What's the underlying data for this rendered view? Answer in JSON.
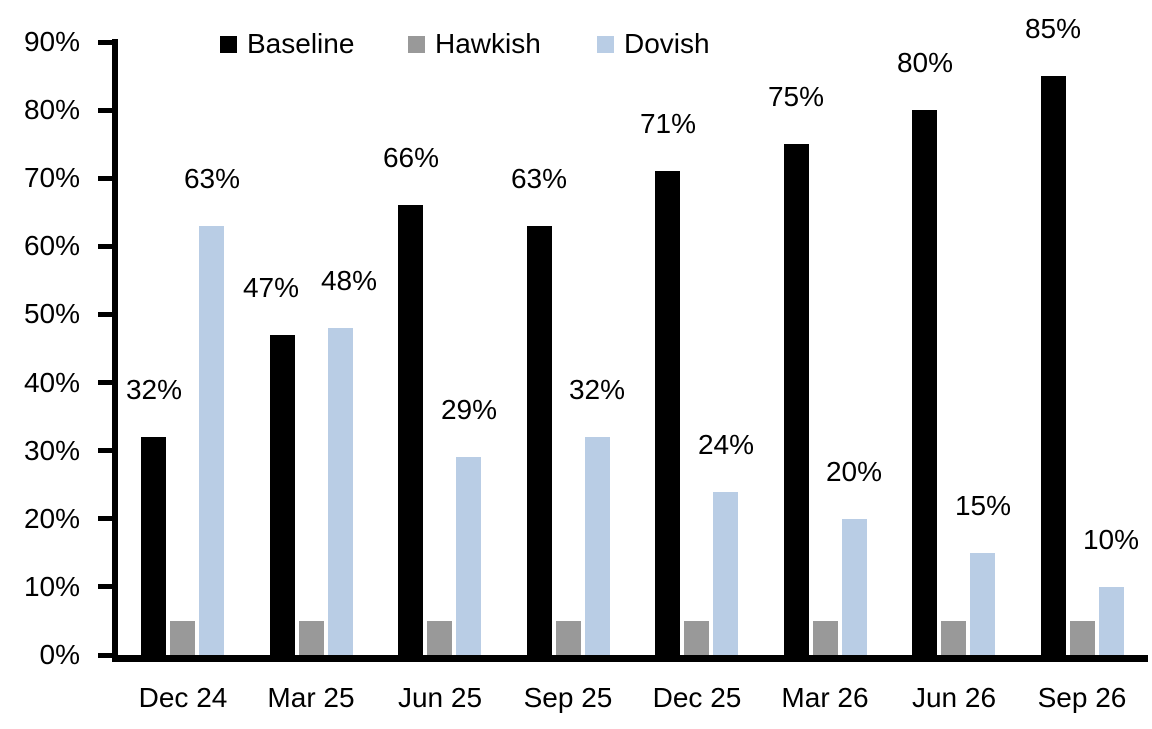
{
  "chart_data": {
    "type": "bar",
    "title": "",
    "xlabel": "",
    "ylabel": "",
    "categories": [
      "Dec 24",
      "Mar 25",
      "Jun 25",
      "Sep 25",
      "Dec 25",
      "Mar 26",
      "Jun 26",
      "Sep 26"
    ],
    "series": [
      {
        "name": "Baseline",
        "color": "#000000",
        "values": [
          32,
          47,
          66,
          63,
          71,
          75,
          80,
          85
        ],
        "data_labels": [
          "32%",
          "47%",
          "66%",
          "63%",
          "71%",
          "75%",
          "80%",
          "85%"
        ]
      },
      {
        "name": "Hawkish",
        "color": "#999999",
        "values": [
          5,
          5,
          5,
          5,
          5,
          5,
          5,
          5
        ],
        "data_labels": [
          null,
          null,
          null,
          null,
          null,
          null,
          null,
          null
        ]
      },
      {
        "name": "Dovish",
        "color": "#B9CDE5",
        "values": [
          63,
          48,
          29,
          32,
          24,
          20,
          15,
          10
        ],
        "data_labels": [
          "63%",
          "48%",
          "29%",
          "32%",
          "24%",
          "20%",
          "15%",
          "10%"
        ]
      }
    ],
    "y_axis": {
      "min": 0,
      "max": 90,
      "tick_labels": [
        "0%",
        "10%",
        "20%",
        "30%",
        "40%",
        "50%",
        "60%",
        "70%",
        "80%",
        "90%"
      ]
    },
    "legend": {
      "position": "top",
      "entries": [
        "Baseline",
        "Hawkish",
        "Dovish"
      ]
    },
    "grid": false
  }
}
